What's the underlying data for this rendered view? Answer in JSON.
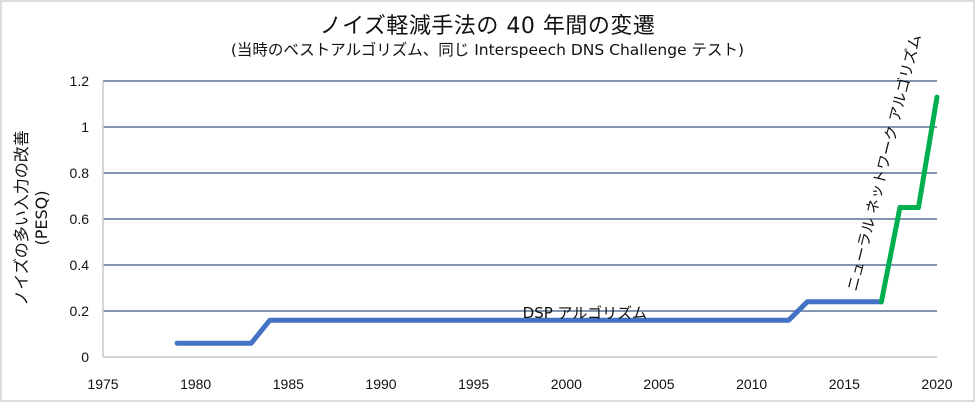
{
  "chart_data": {
    "type": "line",
    "title": "ノイズ軽減手法の 40 年間の変遷",
    "subtitle": "(当時のベストアルゴリズム、同じ Interspeech DNS Challenge テスト)",
    "xlabel": "",
    "ylabel": "ノイズの多い入力の改善 (PESQ)",
    "ylabel_lines": [
      "ノイズの多い入力の改善",
      "(PESQ)"
    ],
    "xlim": [
      1975,
      2020
    ],
    "ylim": [
      0,
      1.2
    ],
    "x_ticks": [
      1975,
      1980,
      1985,
      1990,
      1995,
      2000,
      2005,
      2010,
      2015,
      2020
    ],
    "y_ticks": [
      0,
      0.2,
      0.4,
      0.6,
      0.8,
      1,
      1.2
    ],
    "y_tick_labels": [
      "0",
      "0.2",
      "0.4",
      "0.6",
      "0.8",
      "1",
      "1.2"
    ],
    "grid": "horizontal",
    "legend": "none",
    "series": [
      {
        "name": "DSP アルゴリズム",
        "color": "#4472C4",
        "x": [
          1979,
          1983,
          1984,
          2012,
          2013,
          2017
        ],
        "values": [
          0.06,
          0.06,
          0.16,
          0.16,
          0.24,
          0.24
        ]
      },
      {
        "name": "ニューラル ネットワーク アルゴリズム",
        "color": "#00B050",
        "x": [
          2017,
          2018,
          2019,
          2020
        ],
        "values": [
          0.24,
          0.65,
          0.65,
          1.13
        ]
      }
    ],
    "annotations": [
      {
        "text": "DSP アルゴリズム",
        "x": 2001,
        "y": 0.2
      },
      {
        "text": "ニューラル ネットワーク アルゴリズム",
        "x": 2017.2,
        "y": 0.7,
        "rotation": -76
      }
    ]
  },
  "colors": {
    "dsp_line": "#4472C4",
    "nn_line": "#00B050",
    "gridline": "#5a7396",
    "axis": "#c8c8c8",
    "border": "#dcdcdc"
  }
}
